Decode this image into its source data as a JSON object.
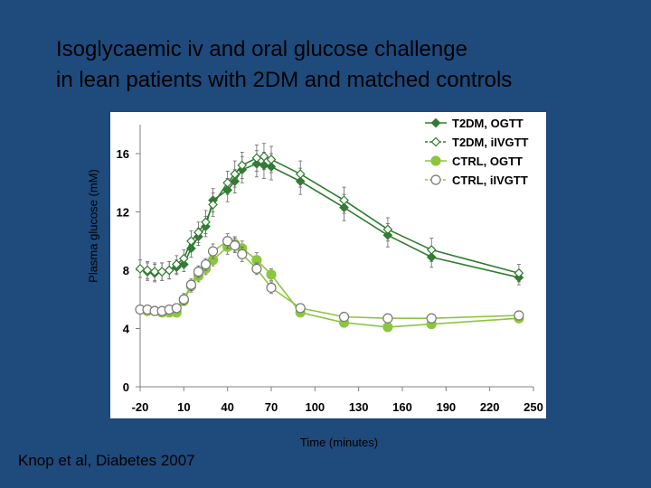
{
  "title_lines": [
    "Isoglycaemic iv and oral glucose challenge",
    "in lean patients with 2DM and matched controls"
  ],
  "citation": "Knop et al, Diabetes 2007",
  "chart_data": {
    "type": "line",
    "title": "",
    "xlabel": "Time (minutes)",
    "ylabel": "Plasma glucose (mM)",
    "xlim": [
      -20,
      250
    ],
    "ylim": [
      0,
      18
    ],
    "xticks": [
      -20,
      10,
      40,
      70,
      100,
      130,
      160,
      190,
      220,
      250
    ],
    "yticks": [
      0,
      4,
      8,
      12,
      16
    ],
    "grid": false,
    "legend_position": "top-right",
    "colors": {
      "dark_green": "#2e7d2e",
      "light_green": "#8cc63f",
      "error_bar": "#666666",
      "plot_bg": "#ffffff"
    },
    "series": [
      {
        "name": "T2DM, OGTT",
        "color": "#2e7d2e",
        "marker": "diamond-filled",
        "x": [
          -15,
          -10,
          -5,
          0,
          5,
          10,
          15,
          20,
          25,
          30,
          40,
          45,
          50,
          60,
          65,
          70,
          90,
          120,
          150,
          180,
          240
        ],
        "y": [
          7.9,
          7.8,
          7.9,
          8.0,
          8.2,
          8.4,
          9.5,
          10.3,
          11.0,
          12.8,
          13.5,
          14.1,
          14.9,
          15.3,
          15.2,
          15.1,
          14.1,
          12.3,
          10.4,
          8.9,
          7.5
        ],
        "err": [
          0.6,
          0.6,
          0.6,
          0.6,
          0.5,
          0.5,
          0.6,
          0.6,
          0.7,
          0.8,
          0.8,
          0.8,
          0.9,
          0.9,
          0.9,
          0.9,
          0.9,
          0.9,
          0.8,
          0.7,
          0.5
        ]
      },
      {
        "name": "T2DM, iIVGTT",
        "color": "#2e7d2e",
        "marker": "diamond-open",
        "x": [
          -20,
          -15,
          -10,
          -5,
          0,
          5,
          10,
          15,
          20,
          25,
          30,
          40,
          45,
          50,
          60,
          65,
          70,
          90,
          120,
          150,
          180,
          240
        ],
        "y": [
          8.1,
          8.0,
          7.9,
          7.9,
          8.0,
          8.4,
          8.8,
          10.0,
          10.6,
          11.3,
          12.5,
          14.0,
          14.6,
          15.2,
          15.7,
          15.8,
          15.6,
          14.6,
          12.8,
          10.8,
          9.4,
          7.8
        ],
        "err": [
          0.6,
          0.6,
          0.6,
          0.6,
          0.6,
          0.6,
          0.6,
          0.7,
          0.7,
          0.8,
          0.8,
          0.8,
          0.9,
          0.9,
          0.9,
          0.9,
          0.9,
          0.9,
          0.9,
          0.8,
          0.8,
          0.6
        ]
      },
      {
        "name": "CTRL, OGTT",
        "color": "#8cc63f",
        "marker": "circle-filled",
        "x": [
          -15,
          -10,
          -5,
          0,
          5,
          10,
          15,
          20,
          25,
          30,
          40,
          45,
          50,
          60,
          70,
          90,
          120,
          150,
          180,
          240
        ],
        "y": [
          5.2,
          5.2,
          5.1,
          5.1,
          5.1,
          5.9,
          6.9,
          7.6,
          8.1,
          8.7,
          9.6,
          9.8,
          9.5,
          8.7,
          7.7,
          5.1,
          4.4,
          4.1,
          4.3,
          4.7
        ],
        "err": [
          0.3,
          0.3,
          0.3,
          0.3,
          0.3,
          0.3,
          0.4,
          0.4,
          0.4,
          0.4,
          0.5,
          0.5,
          0.5,
          0.5,
          0.4,
          0.3,
          0.3,
          0.3,
          0.3,
          0.3
        ]
      },
      {
        "name": "CTRL, iIVGTT",
        "color": "#8cc63f",
        "marker": "circle-open",
        "x": [
          -20,
          -15,
          -10,
          -5,
          0,
          5,
          10,
          15,
          20,
          25,
          30,
          40,
          45,
          50,
          60,
          70,
          90,
          120,
          150,
          180,
          240
        ],
        "y": [
          5.3,
          5.3,
          5.2,
          5.2,
          5.3,
          5.4,
          6.0,
          7.0,
          7.9,
          8.4,
          9.3,
          10.0,
          9.7,
          9.1,
          8.1,
          6.8,
          5.4,
          4.8,
          4.7,
          4.7,
          4.9
        ],
        "err": [
          0.3,
          0.3,
          0.3,
          0.3,
          0.3,
          0.3,
          0.4,
          0.4,
          0.4,
          0.4,
          0.5,
          0.5,
          0.5,
          0.5,
          0.4,
          0.4,
          0.3,
          0.3,
          0.3,
          0.3,
          0.3
        ]
      }
    ]
  }
}
